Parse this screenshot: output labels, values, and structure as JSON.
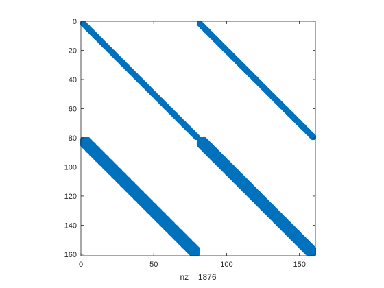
{
  "chart_data": {
    "type": "spy",
    "xlabel": "nz = 1876",
    "xlim": [
      0,
      161
    ],
    "ylim": [
      0,
      161
    ],
    "y_reversed": true,
    "grid": false,
    "xticks": [
      0,
      50,
      100,
      150
    ],
    "yticks": [
      0,
      20,
      40,
      60,
      80,
      100,
      120,
      140,
      160
    ],
    "marker_color": "#0072BD",
    "n": 160,
    "nz": 1876,
    "bands": [
      {
        "name": "upper-main",
        "row_start": 1,
        "row_end": 80,
        "col_start": 1,
        "col_end": 80,
        "half_width": 1
      },
      {
        "name": "upper-right",
        "row_start": 1,
        "row_end": 80,
        "col_start": 81,
        "col_end": 160,
        "half_width": 1
      },
      {
        "name": "lower-left",
        "row_start": 81,
        "row_end": 160,
        "col_start": 1,
        "col_end": 80,
        "half_width": 4
      },
      {
        "name": "lower-main",
        "row_start": 81,
        "row_end": 160,
        "col_start": 81,
        "col_end": 160,
        "half_width": 4
      }
    ]
  }
}
